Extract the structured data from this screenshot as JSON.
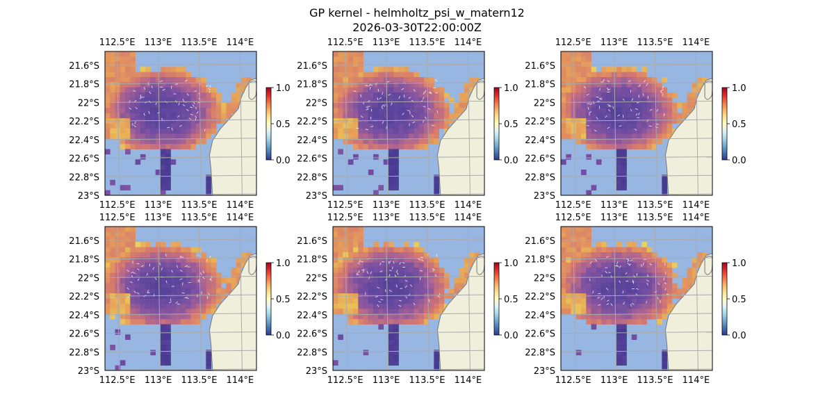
{
  "chart_data": {
    "type": "heatmap",
    "title": "GP kernel - helmholtz_psi_w_matern12",
    "subtitle": "2026-03-30T22:00:00Z",
    "panel_count": 6,
    "layout": "2 rows x 3 columns",
    "x_axis": {
      "range": [
        112.35,
        114.2
      ],
      "ticks": [
        112.5,
        113,
        113.5,
        114
      ],
      "tick_labels": [
        "112.5°E",
        "113°E",
        "113.5°E",
        "114°E"
      ],
      "labels_on": "top and bottom"
    },
    "y_axis": {
      "range": [
        -23.0,
        -21.45
      ],
      "ticks": [
        -21.6,
        -21.8,
        -22.0,
        -22.2,
        -22.4,
        -22.6,
        -22.8,
        -23.0
      ],
      "tick_labels": [
        "21.6°S",
        "21.8°S",
        "22°S",
        "22.2°S",
        "22.4°S",
        "22.6°S",
        "22.8°S",
        "23°S"
      ]
    },
    "colorbar": {
      "range": [
        0.0,
        1.0
      ],
      "ticks": [
        0.0,
        0.5,
        1.0
      ],
      "tick_labels": [
        "0.0",
        "0.5",
        "1.0"
      ],
      "colormap": "RdYlBu_r"
    },
    "grid": true,
    "colors": {
      "ocean": "#97b6e1",
      "land": "#efefdb",
      "coast": "#777777",
      "gridline": "#aaaaaa"
    }
  }
}
